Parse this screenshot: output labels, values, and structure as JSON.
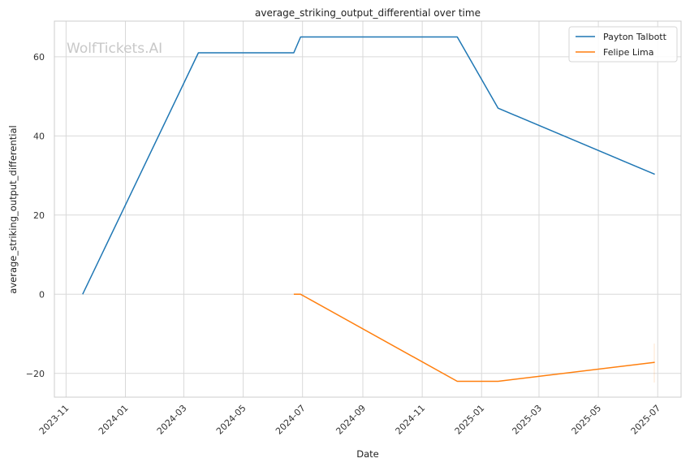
{
  "chart_data": {
    "type": "line",
    "title": "average_striking_output_differential over time",
    "xlabel": "Date",
    "ylabel": "average_striking_output_differential",
    "watermark": "WolfTickets.AI",
    "grid": true,
    "legend_position": "top-right",
    "x_ticks": [
      "2023-11",
      "2024-01",
      "2024-03",
      "2024-05",
      "2024-07",
      "2024-09",
      "2024-11",
      "2025-01",
      "2025-03",
      "2025-05",
      "2025-07"
    ],
    "y_ticks": [
      -20,
      0,
      20,
      40,
      60
    ],
    "ylim": [
      -26,
      69
    ],
    "xlim": [
      "2023-10-20",
      "2025-07-25"
    ],
    "series": [
      {
        "name": "Payton Talbott",
        "color": "#1f77b4",
        "points": [
          {
            "x": "2023-11-18",
            "y": 0
          },
          {
            "x": "2024-03-16",
            "y": 61
          },
          {
            "x": "2024-06-22",
            "y": 61
          },
          {
            "x": "2024-06-29",
            "y": 65
          },
          {
            "x": "2024-12-07",
            "y": 65
          },
          {
            "x": "2025-01-18",
            "y": 47
          },
          {
            "x": "2025-06-28",
            "y": 30.3
          }
        ]
      },
      {
        "name": "Felipe Lima",
        "color": "#ff7f0e",
        "points": [
          {
            "x": "2024-06-22",
            "y": 0
          },
          {
            "x": "2024-06-29",
            "y": 0
          },
          {
            "x": "2024-12-07",
            "y": -22
          },
          {
            "x": "2025-01-18",
            "y": -22
          },
          {
            "x": "2025-06-28",
            "y": -17.2
          }
        ]
      }
    ]
  }
}
